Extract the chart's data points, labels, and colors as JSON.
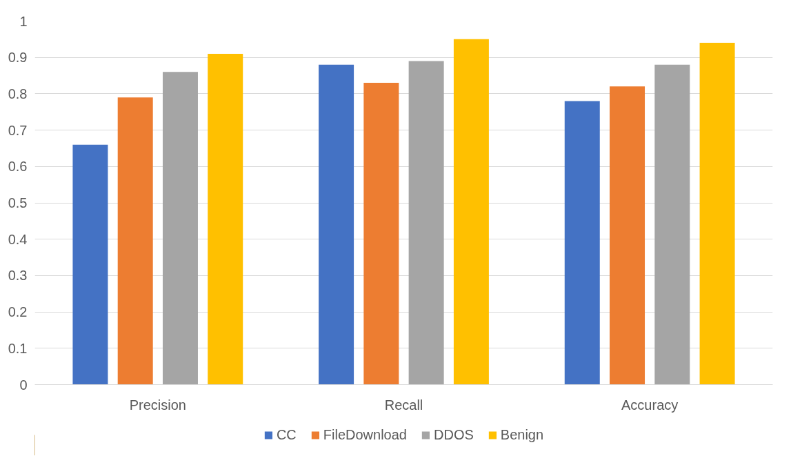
{
  "chart_data": {
    "type": "bar",
    "categories": [
      "Precision",
      "Recall",
      "Accuracy"
    ],
    "series": [
      {
        "name": "CC",
        "color": "#4472c4",
        "values": [
          0.66,
          0.88,
          0.78
        ]
      },
      {
        "name": "FileDownload",
        "color": "#ed7d31",
        "values": [
          0.79,
          0.83,
          0.82
        ]
      },
      {
        "name": "DDOS",
        "color": "#a5a5a5",
        "values": [
          0.86,
          0.89,
          0.88
        ]
      },
      {
        "name": "Benign",
        "color": "#ffc000",
        "values": [
          0.91,
          0.95,
          0.94
        ]
      }
    ],
    "ylim": [
      0,
      1
    ],
    "yticks": [
      0,
      0.1,
      0.2,
      0.3,
      0.4,
      0.5,
      0.6,
      0.7,
      0.8,
      0.9,
      1
    ],
    "grid": "y",
    "legend": "bottom"
  }
}
